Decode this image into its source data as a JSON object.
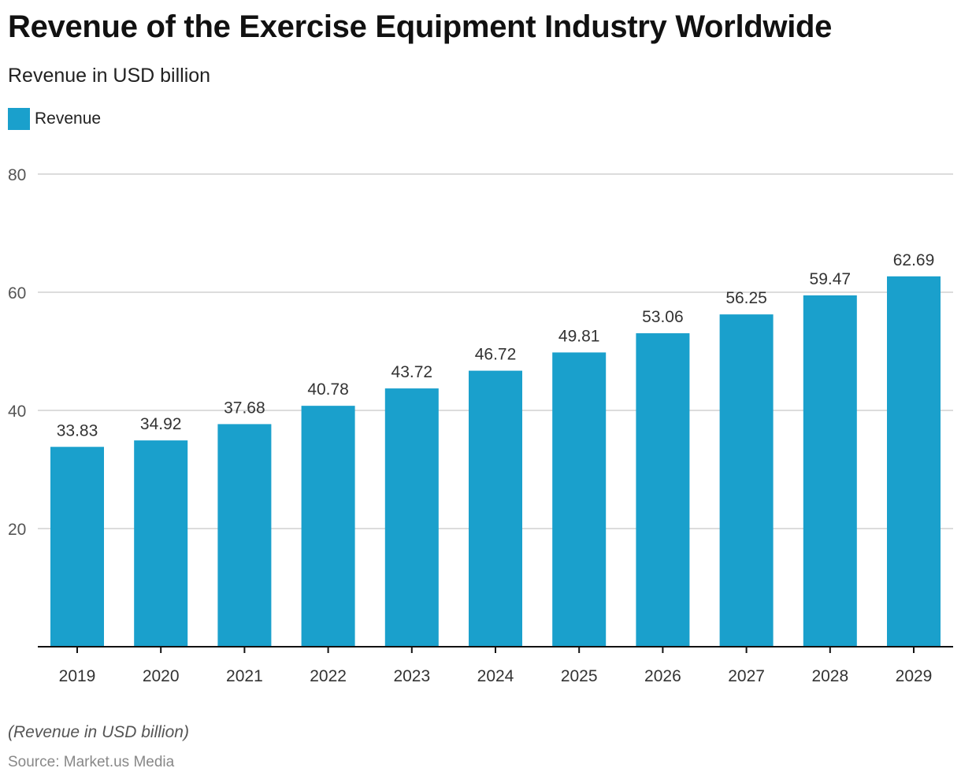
{
  "header": {
    "title": "Revenue of the Exercise Equipment Industry Worldwide",
    "subtitle": "Revenue in USD billion"
  },
  "footer": {
    "note": "(Revenue in USD billion)",
    "source": "Source: Market.us Media"
  },
  "colors": {
    "bar": "#1aa0cc",
    "grid": "#d0d0d0",
    "axis": "#111111",
    "tick_label": "#555555",
    "data_label": "#333333"
  },
  "chart_data": {
    "type": "bar",
    "title": "Revenue of the Exercise Equipment Industry Worldwide",
    "subtitle": "Revenue in USD billion",
    "xlabel": "",
    "ylabel": "",
    "categories": [
      "2019",
      "2020",
      "2021",
      "2022",
      "2023",
      "2024",
      "2025",
      "2026",
      "2027",
      "2028",
      "2029"
    ],
    "series": [
      {
        "name": "Revenue",
        "values": [
          33.83,
          34.92,
          37.68,
          40.78,
          43.72,
          46.72,
          49.81,
          53.06,
          56.25,
          59.47,
          62.69
        ]
      }
    ],
    "data_labels": [
      "33.83",
      "34.92",
      "37.68",
      "40.78",
      "43.72",
      "46.72",
      "49.81",
      "53.06",
      "56.25",
      "59.47",
      "62.69"
    ],
    "ylim": [
      0,
      80
    ],
    "yticks": [
      20,
      40,
      60,
      80
    ],
    "ytick_labels": [
      "20",
      "40",
      "60",
      "80"
    ],
    "grid": true,
    "legend": {
      "position": "top-left",
      "entries": [
        "Revenue"
      ]
    }
  }
}
